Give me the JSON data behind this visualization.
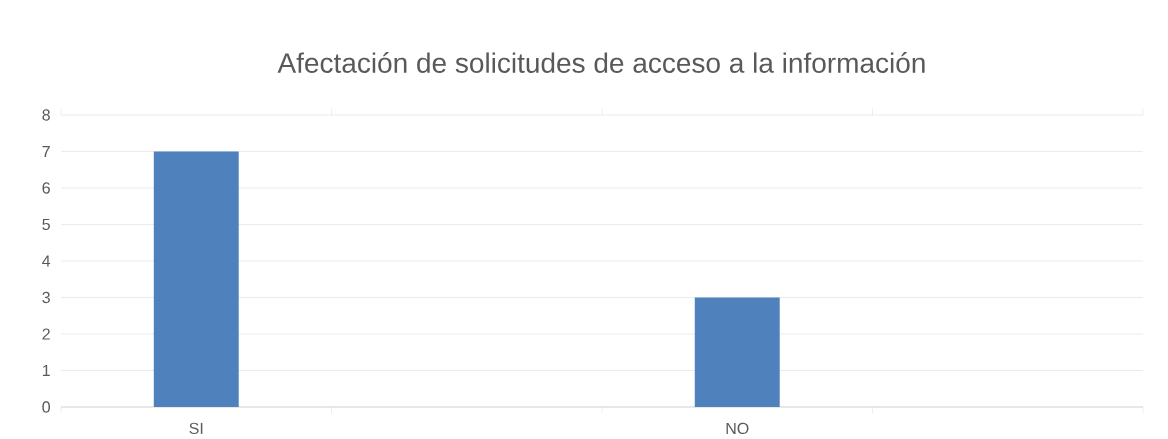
{
  "chart_data": {
    "type": "bar",
    "title": "Afectación de solicitudes de acceso a la información",
    "categories": [
      "SI",
      null,
      "NO",
      null
    ],
    "values": [
      7,
      null,
      3,
      null
    ],
    "color": "#4f81bd",
    "ylim": [
      0,
      8
    ],
    "yticks": [
      0,
      1,
      2,
      3,
      4,
      5,
      6,
      7,
      8
    ],
    "grid": "y"
  }
}
